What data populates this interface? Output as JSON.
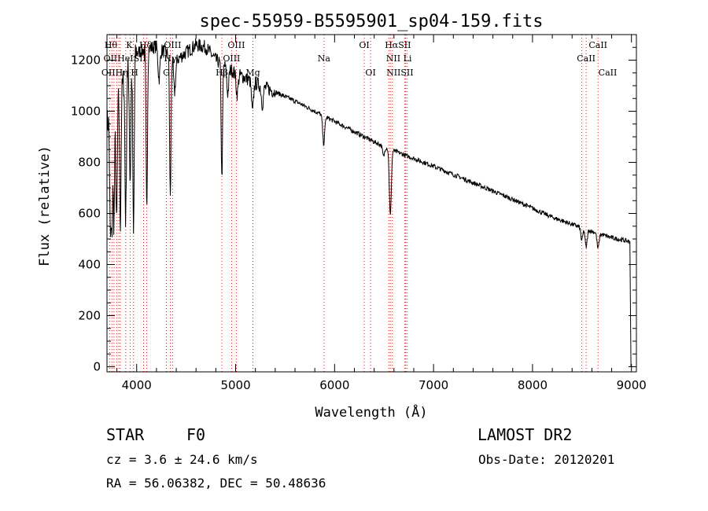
{
  "chart_data": {
    "type": "line",
    "title": "spec-55959-B5595901_sp04-159.fits",
    "xlabel": "Wavelength (Å)",
    "ylabel": "Flux (relative)",
    "xlim": [
      3700,
      9050
    ],
    "ylim": [
      -20,
      1300
    ],
    "xticks": [
      4000,
      5000,
      6000,
      7000,
      8000,
      9000
    ],
    "yticks": [
      0,
      200,
      400,
      600,
      800,
      1000,
      1200
    ],
    "continuum": {
      "x": [
        3700,
        3800,
        3900,
        4000,
        4200,
        4400,
        4500,
        4600,
        4700,
        4800,
        5000,
        5200,
        5400,
        5600,
        5800,
        6000,
        6200,
        6400,
        6600,
        6800,
        7000,
        7400,
        7800,
        8200,
        8600,
        8800,
        8980
      ],
      "y": [
        950,
        1050,
        1150,
        1230,
        1255,
        1200,
        1230,
        1260,
        1250,
        1200,
        1150,
        1110,
        1075,
        1040,
        1000,
        960,
        920,
        880,
        845,
        815,
        785,
        720,
        655,
        585,
        530,
        505,
        490
      ]
    },
    "absorption_lines": [
      {
        "x": 3734,
        "depth": 440
      },
      {
        "x": 3750,
        "depth": 450
      },
      {
        "x": 3770,
        "depth": 450
      },
      {
        "x": 3797,
        "depth": 500
      },
      {
        "x": 3835,
        "depth": 520
      },
      {
        "x": 3889,
        "depth": 560
      },
      {
        "x": 3934,
        "depth": 450
      },
      {
        "x": 3968,
        "depth": 700
      },
      {
        "x": 4102,
        "depth": 620
      },
      {
        "x": 4226,
        "depth": 120
      },
      {
        "x": 4340,
        "depth": 560
      },
      {
        "x": 4383,
        "depth": 130
      },
      {
        "x": 4861,
        "depth": 450
      },
      {
        "x": 4920,
        "depth": 100
      },
      {
        "x": 5015,
        "depth": 80
      },
      {
        "x": 5170,
        "depth": 120
      },
      {
        "x": 5270,
        "depth": 70
      },
      {
        "x": 5890,
        "depth": 110
      },
      {
        "x": 6495,
        "depth": 40
      },
      {
        "x": 6563,
        "depth": 260
      },
      {
        "x": 8498,
        "depth": 50
      },
      {
        "x": 8542,
        "depth": 70
      },
      {
        "x": 8662,
        "depth": 60
      }
    ],
    "series": [
      {
        "name": "flux",
        "color": "#000000"
      }
    ],
    "reference_lines": {
      "color": "#cc2222",
      "x": [
        3727,
        3750,
        3771,
        3798,
        3820,
        3835,
        3889,
        3934,
        3968,
        4070,
        4102,
        4300,
        4340,
        4363,
        4861,
        4959,
        5007,
        5175,
        5893,
        6300,
        6364,
        6548,
        6563,
        6584,
        6708,
        6717,
        6731,
        8498,
        8542,
        8662
      ]
    },
    "line_labels": [
      {
        "text": "Hθ",
        "x": 3740,
        "row": 0
      },
      {
        "text": "K",
        "x": 3925,
        "row": 0
      },
      {
        "text": "Hδ",
        "x": 4090,
        "row": 0
      },
      {
        "text": "OIII",
        "x": 4363,
        "row": 0
      },
      {
        "text": "OIII",
        "x": 5007,
        "row": 0
      },
      {
        "text": "OI",
        "x": 6300,
        "row": 0
      },
      {
        "text": "HαSII",
        "x": 6640,
        "row": 0
      },
      {
        "text": "CaII",
        "x": 8662,
        "row": 0
      },
      {
        "text": "OIIHeISII",
        "x": 3880,
        "row": 1
      },
      {
        "text": "Hγ",
        "x": 4340,
        "row": 1
      },
      {
        "text": "OIII",
        "x": 4959,
        "row": 1
      },
      {
        "text": "Na",
        "x": 5893,
        "row": 1
      },
      {
        "text": "NII Li",
        "x": 6650,
        "row": 1
      },
      {
        "text": "CaII",
        "x": 8542,
        "row": 1
      },
      {
        "text": "OIIHη H",
        "x": 3830,
        "row": 2
      },
      {
        "text": "G",
        "x": 4300,
        "row": 2
      },
      {
        "text": "Hβ",
        "x": 4861,
        "row": 2
      },
      {
        "text": "Mg",
        "x": 5175,
        "row": 2
      },
      {
        "text": "OI",
        "x": 6364,
        "row": 2
      },
      {
        "text": "NIISII",
        "x": 6660,
        "row": 2
      },
      {
        "text": "CaII",
        "x": 8760,
        "row": 2
      }
    ]
  },
  "info": {
    "obj_class": "STAR",
    "subclass": "F0",
    "survey": "LAMOST DR2",
    "cz": "cz = 3.6 ± 24.6 km/s",
    "obs_date": "Obs-Date: 20120201",
    "coords": "RA =  56.06382, DEC =  50.48636"
  }
}
